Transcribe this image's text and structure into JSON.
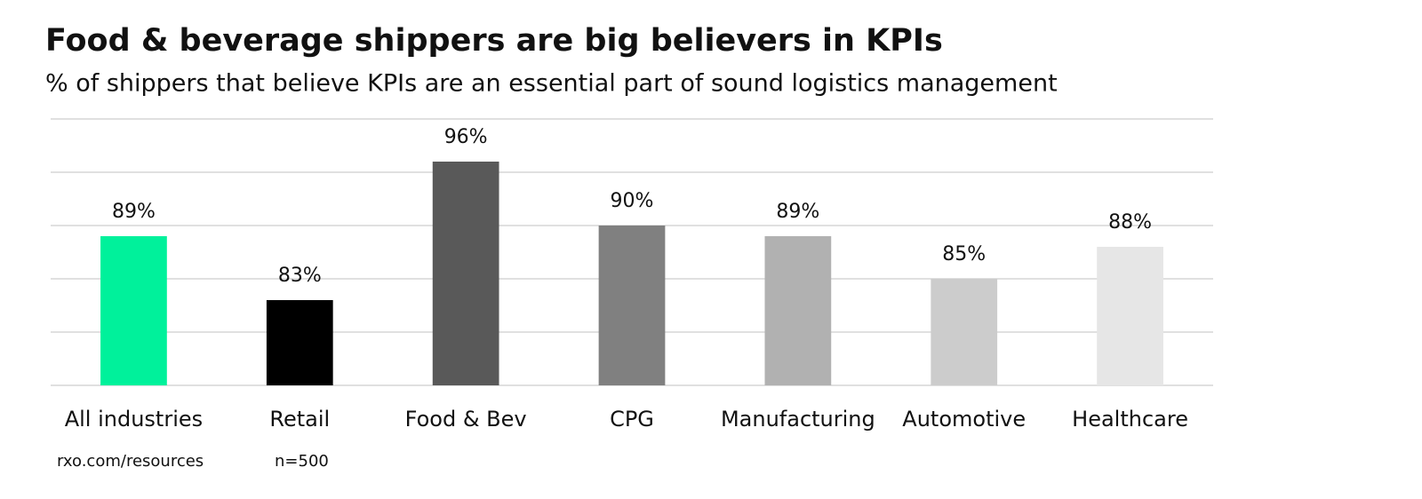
{
  "chart_data": {
    "type": "bar",
    "title": "Food & beverage shippers are big believers in KPIs",
    "subtitle": "% of shippers that believe KPIs are an essential part of sound logistics management",
    "categories": [
      "All industries",
      "Retail",
      "Food & Bev",
      "CPG",
      "Manufacturing",
      "Automotive",
      "Healthcare"
    ],
    "values": [
      89,
      83,
      96,
      90,
      89,
      85,
      88
    ],
    "value_labels": [
      "89%",
      "83%",
      "96%",
      "90%",
      "89%",
      "85%",
      "88%"
    ],
    "colors": [
      "#00f19b",
      "#000000",
      "#595959",
      "#808080",
      "#b1b1b1",
      "#cccccc",
      "#e6e6e6"
    ],
    "ylim": [
      75,
      100
    ],
    "yticks": [
      75,
      80,
      85,
      90,
      95,
      100
    ],
    "grid": true,
    "source": "rxo.com/resources",
    "note": "n=500"
  }
}
